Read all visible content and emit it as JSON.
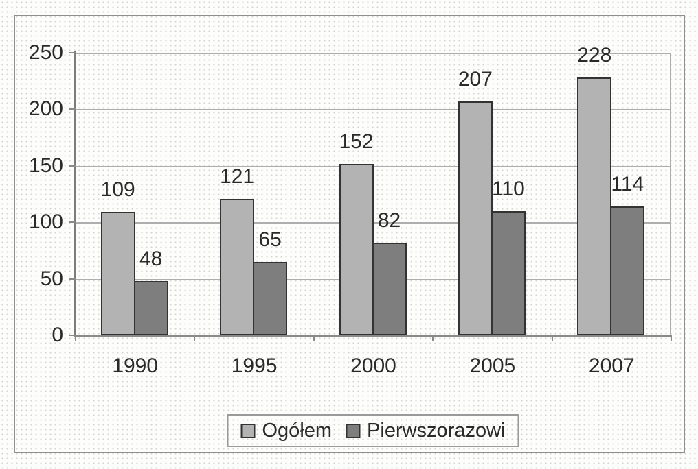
{
  "chart_data": {
    "type": "bar",
    "categories": [
      "1990",
      "1995",
      "2000",
      "2005",
      "2007"
    ],
    "series": [
      {
        "name": "Ogółem",
        "values": [
          109,
          121,
          152,
          207,
          228
        ],
        "color": "#b3b3b3"
      },
      {
        "name": "Pierwszorazowi",
        "values": [
          48,
          65,
          82,
          110,
          114
        ],
        "color": "#7e7e7e"
      }
    ],
    "title": "",
    "xlabel": "",
    "ylabel": "",
    "ylim": [
      0,
      250
    ],
    "yticks": [
      0,
      50,
      100,
      150,
      200,
      250
    ],
    "ytick_labels": [
      "0",
      "50",
      "100",
      "150",
      "200",
      "250"
    ],
    "grid": true,
    "bar_value_labels": true,
    "legend_position": "bottom"
  },
  "colors": {
    "series_light": "#b3b3b3",
    "series_dark": "#7e7e7e",
    "bar_border": "#333333",
    "gridline": "#aeaeae",
    "axis": "#7c7c7c",
    "frame": "#8f8f8f",
    "text": "#2a2a2a",
    "background": "#fdfdfb"
  }
}
